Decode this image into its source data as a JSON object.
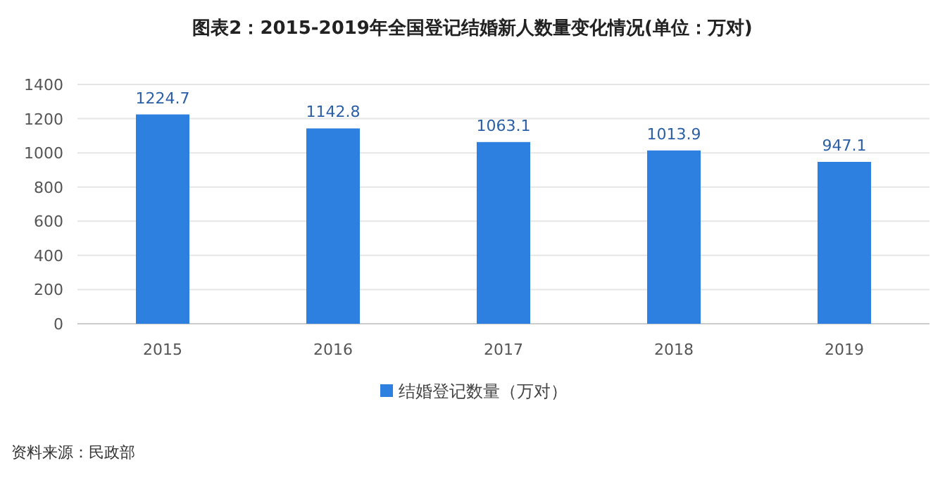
{
  "chart_data": {
    "type": "bar",
    "title": "图表2：2015-2019年全国登记结婚新人数量变化情况(单位：万对)",
    "categories": [
      "2015",
      "2016",
      "2017",
      "2018",
      "2019"
    ],
    "series": [
      {
        "name": "结婚登记数量（万对）",
        "color": "#2d7fe0",
        "values": [
          1224.7,
          1142.8,
          1063.1,
          1013.9,
          947.1
        ]
      }
    ],
    "ylim": [
      0,
      1400
    ],
    "yticks": [
      0,
      200,
      400,
      600,
      800,
      1000,
      1200,
      1400
    ],
    "grid": "y",
    "legend": "bottom",
    "data_labels": true,
    "annotations": [
      "资料来源：民政部"
    ]
  }
}
